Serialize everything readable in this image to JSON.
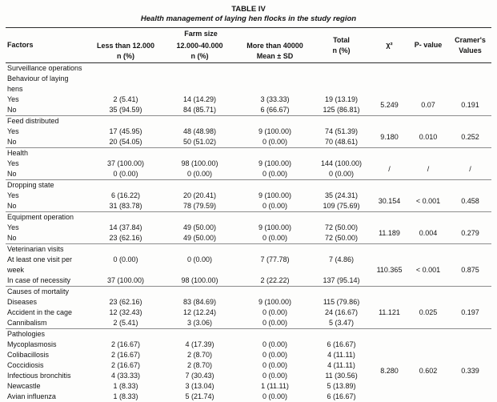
{
  "page": {
    "title": "TABLE IV",
    "subtitle": "Health management of laying hen flocks in the study region"
  },
  "header": {
    "factors": "Factors",
    "farm_size": "Farm size",
    "less_12000": [
      "Less than 12.000",
      "n (%)"
    ],
    "mid_12000_40000": [
      "12.000-40.000",
      "n (%)"
    ],
    "more_40000": [
      "More than 40000",
      "Mean ± SD"
    ],
    "total": [
      "Total",
      "n (%)"
    ],
    "chi2": "χ²",
    "p_value": "P- value",
    "cramers": [
      "Cramer's",
      "Values"
    ]
  },
  "groups": [
    {
      "label_lines": [
        "Surveillance operations",
        "Behaviour of laying",
        "hens"
      ],
      "rows": [
        {
          "factor": "Yes",
          "values": [
            "2 (5.41)",
            "14 (14.29)",
            "3 (33.33)",
            "19 (13.19)"
          ]
        },
        {
          "factor": "No",
          "values": [
            "35 (94.59)",
            "84 (85.71)",
            "6 (66.67)",
            "125 (86.81)"
          ]
        }
      ],
      "stats": {
        "chi2": "5.249",
        "p": "0.07",
        "cramer": "0.191"
      }
    },
    {
      "label_lines": [
        "Feed distributed"
      ],
      "rows": [
        {
          "factor": "Yes",
          "values": [
            "17 (45.95)",
            "48 (48.98)",
            "9 (100.00)",
            "74 (51.39)"
          ]
        },
        {
          "factor": "No",
          "values": [
            "20 (54.05)",
            "50 (51.02)",
            "0 (0.00)",
            "70 (48.61)"
          ]
        }
      ],
      "stats": {
        "chi2": "9.180",
        "p": "0.010",
        "cramer": "0.252"
      }
    },
    {
      "label_lines": [
        "Health"
      ],
      "rows": [
        {
          "factor": "Yes",
          "values": [
            "37 (100.00)",
            "98 (100.00)",
            "9 (100.00)",
            "144 (100.00)"
          ]
        },
        {
          "factor": "No",
          "values": [
            "0 (0.00)",
            "0 (0.00)",
            "0 (0.00)",
            "0 (0.00)"
          ]
        }
      ],
      "stats": {
        "chi2": "/",
        "p": "/",
        "cramer": "/"
      }
    },
    {
      "label_lines": [
        "Dropping state"
      ],
      "rows": [
        {
          "factor": "Yes",
          "values": [
            "6 (16.22)",
            "20 (20.41)",
            "9 (100.00)",
            "35 (24.31)"
          ]
        },
        {
          "factor": "No",
          "values": [
            "31 (83.78)",
            "78 (79.59)",
            "0 (0.00)",
            "109 (75.69)"
          ]
        }
      ],
      "stats": {
        "chi2": "30.154",
        "p": "< 0.001",
        "cramer": "0.458"
      }
    },
    {
      "label_lines": [
        "Equipment operation"
      ],
      "rows": [
        {
          "factor": "Yes",
          "values": [
            "14 (37.84)",
            "49 (50.00)",
            "9 (100.00)",
            "72 (50.00)"
          ]
        },
        {
          "factor": "No",
          "values": [
            "23 (62.16)",
            "49 (50.00)",
            "0 (0.00)",
            "72 (50.00)"
          ]
        }
      ],
      "stats": {
        "chi2": "11.189",
        "p": "0.004",
        "cramer": "0.279"
      }
    },
    {
      "label_lines": [
        "Veterinarian visits"
      ],
      "rows": [
        {
          "factor": "At least one visit per week",
          "values": [
            "0 (0.00)",
            "0 (0.00)",
            "7 (77.78)",
            "7 (4.86)"
          ]
        },
        {
          "factor": "In case of necessity",
          "values": [
            "37 (100.00)",
            "98 (100.00)",
            "2 (22.22)",
            "137 (95.14)"
          ]
        }
      ],
      "stats": {
        "chi2": "110.365",
        "p": "< 0.001",
        "cramer": "0.875"
      }
    },
    {
      "label_lines": [
        "Causes of mortality"
      ],
      "rows": [
        {
          "factor": "Diseases",
          "values": [
            "23 (62.16)",
            "83 (84.69)",
            "9 (100.00)",
            "115 (79.86)"
          ]
        },
        {
          "factor": "Accident in the cage",
          "values": [
            "12 (32.43)",
            "12 (12.24)",
            "0 (0.00)",
            "24 (16.67)"
          ]
        },
        {
          "factor": "Cannibalism",
          "values": [
            "2 (5.41)",
            "3 (3.06)",
            "0 (0.00)",
            "5 (3.47)"
          ]
        }
      ],
      "stats": {
        "chi2": "11.121",
        "p": "0.025",
        "cramer": "0.197"
      }
    },
    {
      "label_lines": [
        "Pathologies"
      ],
      "rows": [
        {
          "factor": "Mycoplasmosis",
          "values": [
            "2 (16.67)",
            "4 (17.39)",
            "0 (0.00)",
            "6 (16.67)"
          ]
        },
        {
          "factor": "Colibacillosis",
          "values": [
            "2 (16.67)",
            "2 (8.70)",
            "0 (0.00)",
            "4 (11.11)"
          ]
        },
        {
          "factor": "Coccidiosis",
          "values": [
            "2 (16.67)",
            "2 (8.70)",
            "0 (0.00)",
            "4 (11.11)"
          ]
        },
        {
          "factor": "Infectious bronchitis",
          "values": [
            "4 (33.33)",
            "7 (30.43)",
            "0 (0.00)",
            "11 (30.56)"
          ]
        },
        {
          "factor": "Newcastle",
          "values": [
            "1 (8.33)",
            "3 (13.04)",
            "1 (11.11)",
            "5 (13.89)"
          ]
        },
        {
          "factor": "Avian influenza",
          "values": [
            "1 (8.33)",
            "5 (21.74)",
            "0 (0.00)",
            "6 (16.67)"
          ]
        }
      ],
      "stats": {
        "chi2": "8.280",
        "p": "0.602",
        "cramer": "0.339"
      }
    }
  ]
}
